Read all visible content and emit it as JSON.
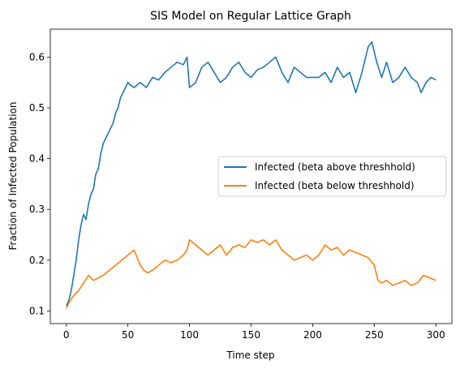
{
  "chart_data": {
    "type": "line",
    "title": "SIS Model on Regular Lattice Graph",
    "xlabel": "Time step",
    "ylabel": "Fraction of Infected Population",
    "xlim": [
      -13,
      313
    ],
    "ylim": [
      0.075,
      0.655
    ],
    "xticks": [
      0,
      50,
      100,
      150,
      200,
      250,
      300
    ],
    "yticks": [
      0.1,
      0.2,
      0.3,
      0.4,
      0.5,
      0.6
    ],
    "legend": "center-right",
    "grid": false,
    "series": [
      {
        "name": "Infected (beta above threshhold)",
        "color": "#1f77b4",
        "x": [
          0,
          2,
          4,
          6,
          8,
          10,
          12,
          14,
          16,
          18,
          20,
          22,
          24,
          26,
          28,
          30,
          32,
          34,
          36,
          38,
          40,
          42,
          44,
          46,
          48,
          50,
          52,
          55,
          60,
          65,
          70,
          75,
          80,
          85,
          90,
          95,
          98,
          100,
          105,
          110,
          115,
          120,
          125,
          130,
          135,
          140,
          145,
          150,
          155,
          160,
          165,
          170,
          175,
          180,
          185,
          190,
          195,
          200,
          205,
          210,
          215,
          220,
          225,
          230,
          235,
          240,
          245,
          248,
          252,
          256,
          260,
          265,
          270,
          275,
          280,
          285,
          288,
          292,
          296,
          300
        ],
        "values": [
          0.11,
          0.12,
          0.14,
          0.17,
          0.2,
          0.24,
          0.27,
          0.29,
          0.28,
          0.31,
          0.33,
          0.34,
          0.37,
          0.38,
          0.41,
          0.43,
          0.44,
          0.45,
          0.46,
          0.47,
          0.49,
          0.5,
          0.52,
          0.53,
          0.54,
          0.55,
          0.545,
          0.54,
          0.55,
          0.54,
          0.56,
          0.555,
          0.57,
          0.58,
          0.59,
          0.585,
          0.6,
          0.54,
          0.55,
          0.58,
          0.59,
          0.57,
          0.55,
          0.56,
          0.58,
          0.59,
          0.57,
          0.56,
          0.575,
          0.58,
          0.59,
          0.6,
          0.57,
          0.55,
          0.58,
          0.57,
          0.56,
          0.56,
          0.56,
          0.57,
          0.55,
          0.58,
          0.56,
          0.57,
          0.53,
          0.57,
          0.62,
          0.63,
          0.59,
          0.56,
          0.59,
          0.55,
          0.56,
          0.58,
          0.56,
          0.55,
          0.53,
          0.55,
          0.56,
          0.555
        ]
      },
      {
        "name": "Infected (beta below threshhold)",
        "color": "#ff7f0e",
        "x": [
          0,
          3,
          6,
          10,
          14,
          18,
          22,
          26,
          30,
          35,
          40,
          45,
          50,
          55,
          60,
          63,
          66,
          70,
          75,
          80,
          85,
          90,
          95,
          98,
          100,
          105,
          110,
          115,
          120,
          125,
          130,
          135,
          140,
          145,
          150,
          155,
          160,
          165,
          170,
          175,
          180,
          185,
          190,
          195,
          200,
          205,
          210,
          215,
          220,
          225,
          230,
          235,
          240,
          245,
          250,
          253,
          256,
          260,
          265,
          270,
          275,
          280,
          285,
          290,
          295,
          300
        ],
        "values": [
          0.105,
          0.12,
          0.13,
          0.14,
          0.155,
          0.17,
          0.16,
          0.165,
          0.17,
          0.18,
          0.19,
          0.2,
          0.21,
          0.22,
          0.19,
          0.18,
          0.175,
          0.18,
          0.19,
          0.2,
          0.195,
          0.2,
          0.21,
          0.22,
          0.24,
          0.23,
          0.22,
          0.21,
          0.22,
          0.23,
          0.21,
          0.225,
          0.23,
          0.225,
          0.24,
          0.235,
          0.24,
          0.23,
          0.24,
          0.22,
          0.21,
          0.2,
          0.205,
          0.21,
          0.2,
          0.21,
          0.23,
          0.22,
          0.225,
          0.21,
          0.22,
          0.215,
          0.21,
          0.205,
          0.19,
          0.16,
          0.155,
          0.16,
          0.15,
          0.155,
          0.16,
          0.15,
          0.155,
          0.17,
          0.165,
          0.16
        ]
      }
    ]
  }
}
